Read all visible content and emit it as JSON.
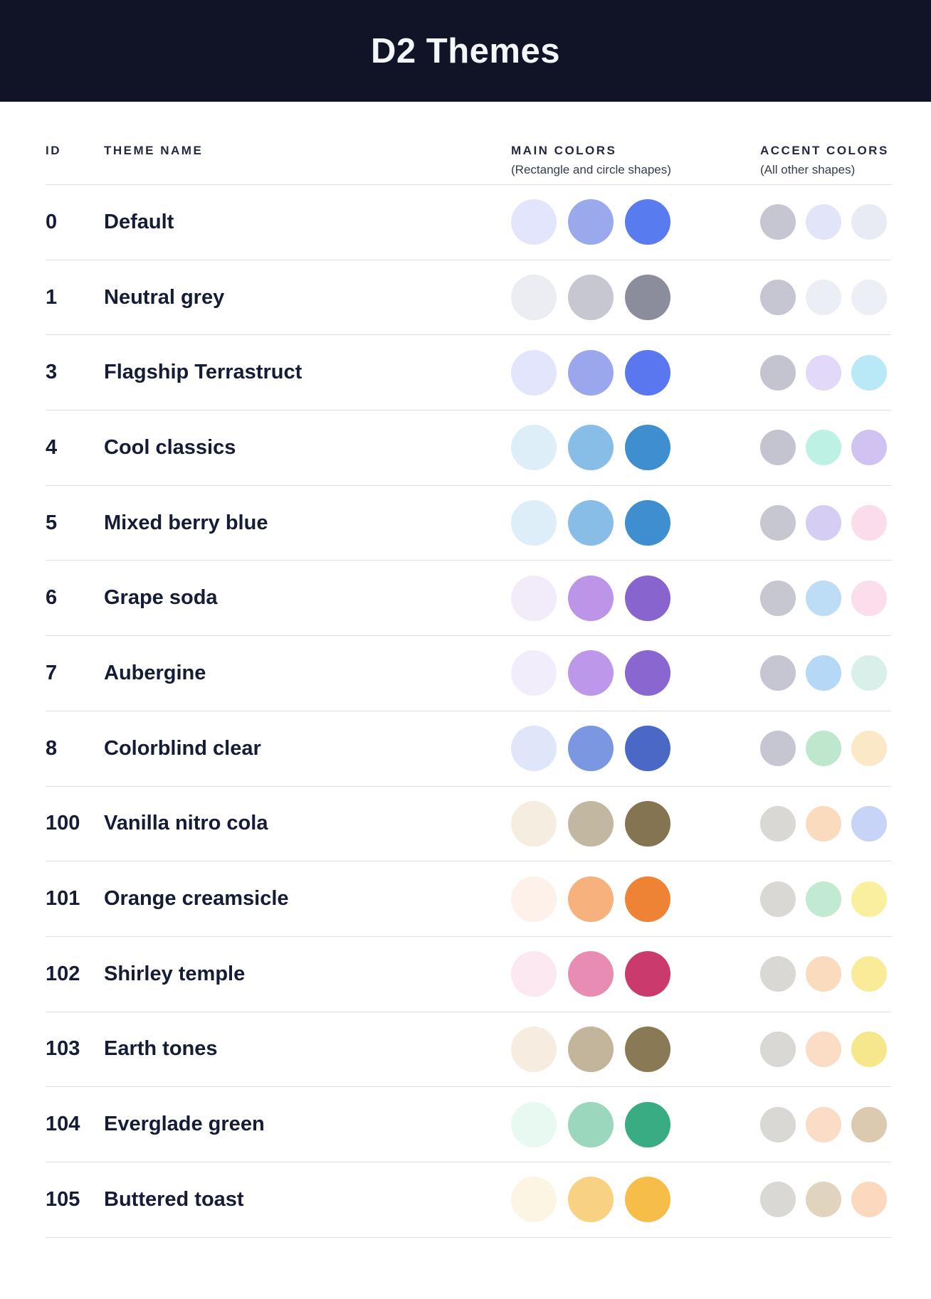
{
  "header": {
    "title": "D2 Themes"
  },
  "table": {
    "columns": {
      "id_label": "ID",
      "name_label": "THEME NAME",
      "main_label": "MAIN COLORS",
      "main_sublabel": "(Rectangle and circle shapes)",
      "accent_label": "ACCENT COLORS",
      "accent_sublabel": "(All other shapes)"
    },
    "rows": [
      {
        "id": "0",
        "name": "Default",
        "main_colors": [
          "#E3E5FC",
          "#9AA9EC",
          "#587BF0"
        ],
        "accent_colors": [
          "#C6C6D2",
          "#E2E5FA",
          "#E9EBF4"
        ]
      },
      {
        "id": "1",
        "name": "Neutral grey",
        "main_colors": [
          "#EBEDF2",
          "#C6C7D1",
          "#8B8D9C"
        ],
        "accent_colors": [
          "#C6C6D2",
          "#ECEEF5",
          "#EDEFF6"
        ]
      },
      {
        "id": "3",
        "name": "Flagship Terrastruct",
        "main_colors": [
          "#E3E5FC",
          "#9BA7EC",
          "#5B77EF"
        ],
        "accent_colors": [
          "#C3C4CF",
          "#E2D8F7",
          "#B9E8F6"
        ]
      },
      {
        "id": "4",
        "name": "Cool classics",
        "main_colors": [
          "#DEEEF9",
          "#88BDE8",
          "#3E8ED0"
        ],
        "accent_colors": [
          "#C3C4CF",
          "#BCF1E4",
          "#D0C3F1"
        ]
      },
      {
        "id": "5",
        "name": "Mixed berry blue",
        "main_colors": [
          "#DEEEF9",
          "#88BDE8",
          "#3E8ED0"
        ],
        "accent_colors": [
          "#C6C7D1",
          "#D6CDF3",
          "#FADCEB"
        ]
      },
      {
        "id": "6",
        "name": "Grape soda",
        "main_colors": [
          "#F2EBFA",
          "#BC95E8",
          "#8864CF"
        ],
        "accent_colors": [
          "#C6C7D1",
          "#BDDCF6",
          "#FBDDEB"
        ]
      },
      {
        "id": "7",
        "name": "Aubergine",
        "main_colors": [
          "#F2EDFB",
          "#BD97E9",
          "#8966D0"
        ],
        "accent_colors": [
          "#C5C6D1",
          "#B4D8F5",
          "#D8F0E9"
        ]
      },
      {
        "id": "8",
        "name": "Colorblind clear",
        "main_colors": [
          "#E0E6FA",
          "#7B97E1",
          "#4A69C6"
        ],
        "accent_colors": [
          "#C5C6D1",
          "#BEE7CE",
          "#FAE8C6"
        ]
      },
      {
        "id": "100",
        "name": "Vanilla nitro cola",
        "main_colors": [
          "#F6EDE1",
          "#C2B7A1",
          "#857452"
        ],
        "accent_colors": [
          "#DAD8D4",
          "#FBDBBD",
          "#C7D4F7"
        ]
      },
      {
        "id": "101",
        "name": "Orange creamsicle",
        "main_colors": [
          "#FDF1E9",
          "#F7B17C",
          "#EE8336"
        ],
        "accent_colors": [
          "#DAD8D4",
          "#C2E9D2",
          "#FAEF9F"
        ]
      },
      {
        "id": "102",
        "name": "Shirley temple",
        "main_colors": [
          "#FBE8F0",
          "#E88CB3",
          "#CB3A6D"
        ],
        "accent_colors": [
          "#DAD8D4",
          "#FBDBBD",
          "#F9EB98"
        ]
      },
      {
        "id": "103",
        "name": "Earth tones",
        "main_colors": [
          "#F6EDE0",
          "#C2B59B",
          "#897955"
        ],
        "accent_colors": [
          "#DAD8D4",
          "#FBDCC4",
          "#F7E78C"
        ]
      },
      {
        "id": "104",
        "name": "Everglade green",
        "main_colors": [
          "#E8F9F1",
          "#9BD7BC",
          "#39AC84"
        ],
        "accent_colors": [
          "#DAD8D4",
          "#FBDCC6",
          "#DBCAB0"
        ]
      },
      {
        "id": "105",
        "name": "Buttered toast",
        "main_colors": [
          "#FCF5E3",
          "#F9D182",
          "#F6BD48"
        ],
        "accent_colors": [
          "#DAD8D4",
          "#E1D4BE",
          "#FBD8BE"
        ]
      }
    ]
  },
  "colors": {
    "page_bg": "#FFFFFF",
    "header_bg": "#101426",
    "header_text": "#F4F6FA",
    "row_text": "#151C35",
    "column_header_text": "#232A40",
    "column_subheader_text": "#353C4C",
    "separator": "#DBDEE9"
  }
}
